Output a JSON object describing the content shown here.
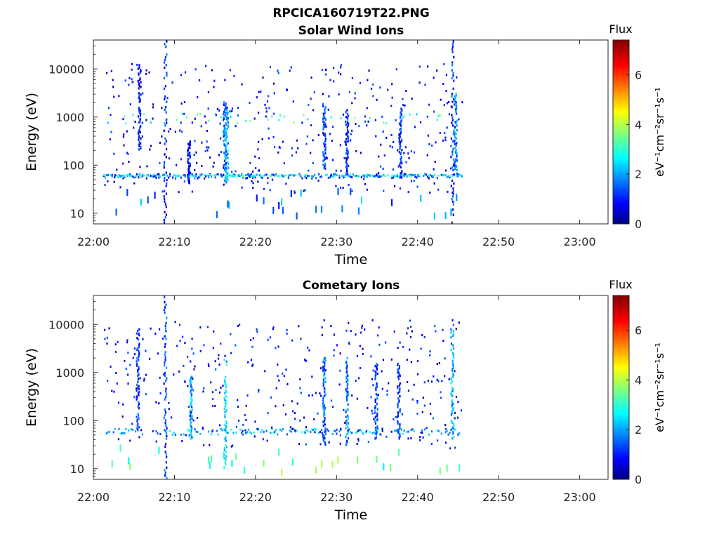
{
  "title": "RPCICA160719T22.PNG",
  "panels": [
    {
      "title": "Solar Wind Ions",
      "xlabel": "Time",
      "ylabel": "Energy (eV)"
    },
    {
      "title": "Cometary Ions",
      "xlabel": "Time",
      "ylabel": "Energy (eV)"
    }
  ],
  "colorbar": {
    "title": "Flux",
    "label": "eV⁻¹cm⁻²sr⁻¹s⁻¹",
    "ticks": [
      "0",
      "2",
      "4",
      "6"
    ],
    "range": [
      0,
      7.4
    ],
    "colormap": "jet"
  },
  "chart_data": [
    {
      "type": "heatmap",
      "title": "Solar Wind Ions",
      "xlabel": "Time",
      "ylabel": "Energy (eV)",
      "x_ticks": [
        "22:00",
        "22:10",
        "22:20",
        "22:30",
        "22:40",
        "22:50",
        "23:00"
      ],
      "y_ticks": [
        "10",
        "100",
        "1000",
        "10000"
      ],
      "x_range_min": [
        0,
        63.5
      ],
      "y_range_eV": [
        6,
        40000
      ],
      "y_scale": "log",
      "data_extent_min": [
        1.2,
        45.5
      ],
      "features": [
        {
          "type": "column",
          "t": 8.8,
          "e": [
            6,
            40000
          ],
          "v": 1.2
        },
        {
          "type": "column",
          "t": 44.2,
          "e": [
            6,
            40000
          ],
          "v": 1.3
        },
        {
          "type": "column",
          "t": 16.1,
          "e": [
            40,
            2000
          ],
          "v": 1.6
        },
        {
          "type": "column",
          "t": 16.4,
          "e": [
            40,
            1500
          ],
          "v": 2.2
        },
        {
          "type": "column",
          "t": 5.6,
          "e": [
            200,
            12000
          ],
          "v": 1.0
        },
        {
          "type": "column",
          "t": 28.4,
          "e": [
            80,
            2000
          ],
          "v": 1.4
        },
        {
          "type": "column",
          "t": 31.2,
          "e": [
            60,
            1500
          ],
          "v": 1.2
        },
        {
          "type": "column",
          "t": 44.6,
          "e": [
            60,
            3000
          ],
          "v": 1.8
        },
        {
          "type": "column",
          "t": 11.7,
          "e": [
            40,
            300
          ],
          "v": 1.0
        },
        {
          "type": "column",
          "t": 37.8,
          "e": [
            50,
            1500
          ],
          "v": 1.1
        },
        {
          "type": "band",
          "t": [
            1.2,
            45.5
          ],
          "e": [
            50,
            62
          ],
          "v": 1.4
        },
        {
          "type": "band",
          "t": [
            1.2,
            45.5
          ],
          "e": [
            55,
            60
          ],
          "v": 2.6
        },
        {
          "type": "band",
          "t": [
            1.2,
            45.5
          ],
          "e": [
            700,
            1100
          ],
          "v": 3.2
        },
        {
          "type": "band",
          "t": [
            1.2,
            45.5
          ],
          "e": [
            7,
            24
          ],
          "v": 1.8
        }
      ]
    },
    {
      "type": "heatmap",
      "title": "Cometary Ions",
      "xlabel": "Time",
      "ylabel": "Energy (eV)",
      "x_ticks": [
        "22:00",
        "22:10",
        "22:20",
        "22:30",
        "22:40",
        "22:50",
        "23:00"
      ],
      "y_ticks": [
        "10",
        "100",
        "1000",
        "10000"
      ],
      "x_range_min": [
        0,
        63.5
      ],
      "y_range_eV": [
        6,
        40000
      ],
      "y_scale": "log",
      "data_extent_min": [
        1.2,
        45.5
      ],
      "features": [
        {
          "type": "column",
          "t": 8.8,
          "e": [
            6,
            40000
          ],
          "v": 1.4
        },
        {
          "type": "column",
          "t": 16.2,
          "e": [
            10,
            2000
          ],
          "v": 2.6
        },
        {
          "type": "column",
          "t": 44.2,
          "e": [
            40,
            8000
          ],
          "v": 2.2
        },
        {
          "type": "column",
          "t": 5.4,
          "e": [
            60,
            8000
          ],
          "v": 1.3
        },
        {
          "type": "column",
          "t": 28.4,
          "e": [
            30,
            2000
          ],
          "v": 1.8
        },
        {
          "type": "column",
          "t": 31.2,
          "e": [
            30,
            2000
          ],
          "v": 1.8
        },
        {
          "type": "column",
          "t": 34.8,
          "e": [
            40,
            1500
          ],
          "v": 1.4
        },
        {
          "type": "column",
          "t": 37.6,
          "e": [
            40,
            1500
          ],
          "v": 1.4
        },
        {
          "type": "column",
          "t": 12.0,
          "e": [
            40,
            800
          ],
          "v": 2.2
        },
        {
          "type": "band",
          "t": [
            1.2,
            45.5
          ],
          "e": [
            48,
            64
          ],
          "v": 2.2
        },
        {
          "type": "band",
          "t": [
            1.2,
            45.5
          ],
          "e": [
            7,
            24
          ],
          "v": 3.4
        }
      ]
    }
  ]
}
